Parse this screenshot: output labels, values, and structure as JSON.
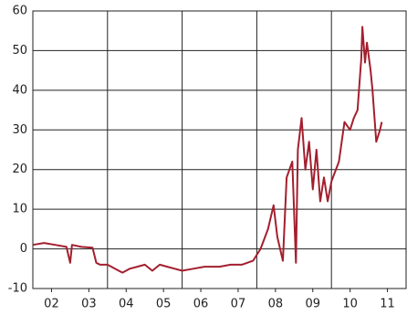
{
  "chart_data": {
    "type": "line",
    "x": [
      2002.0,
      2002.3,
      2002.6,
      2002.9,
      2003.0,
      2003.05,
      2003.3,
      2003.6,
      2003.7,
      2003.8,
      2004.0,
      2004.2,
      2004.4,
      2004.6,
      2004.8,
      2005.0,
      2005.2,
      2005.4,
      2005.6,
      2005.8,
      2006.0,
      2006.3,
      2006.6,
      2007.0,
      2007.3,
      2007.6,
      2007.9,
      2008.1,
      2008.3,
      2008.45,
      2008.55,
      2008.7,
      2008.8,
      2008.95,
      2009.05,
      2009.1,
      2009.2,
      2009.3,
      2009.4,
      2009.5,
      2009.6,
      2009.7,
      2009.8,
      2009.9,
      2010.0,
      2010.2,
      2010.35,
      2010.5,
      2010.6,
      2010.7,
      2010.8,
      2010.83,
      2010.9,
      2010.95,
      2011.05,
      2011.1,
      2011.2,
      2011.3,
      2011.35
    ],
    "series": [
      {
        "color": "#a31f2e",
        "values": [
          1,
          1.5,
          1,
          0.5,
          -3.5,
          1,
          0.5,
          0.3,
          -3.5,
          -4,
          -4,
          -5,
          -6,
          -5,
          -4.5,
          -4,
          -5.5,
          -4,
          -4.5,
          -5,
          -5.5,
          -5,
          -4.5,
          -4.5,
          -4,
          -4,
          -3,
          0,
          5,
          11,
          3,
          -3,
          18,
          22,
          -3.5,
          25,
          33,
          20,
          27,
          15,
          25,
          12,
          18,
          12,
          17,
          22,
          32,
          30,
          33,
          35,
          48,
          56,
          47,
          52,
          45,
          40,
          27,
          30,
          32
        ]
      }
    ],
    "xlim": [
      2002,
      2012
    ],
    "xticks": [
      {
        "value": 2002.5,
        "label": "02"
      },
      {
        "value": 2003.5,
        "label": "03"
      },
      {
        "value": 2004.5,
        "label": "04"
      },
      {
        "value": 2005.5,
        "label": "05"
      },
      {
        "value": 2006.5,
        "label": "06"
      },
      {
        "value": 2007.5,
        "label": "07"
      },
      {
        "value": 2008.5,
        "label": "08"
      },
      {
        "value": 2009.5,
        "label": "09"
      },
      {
        "value": 2010.5,
        "label": "10"
      },
      {
        "value": 2011.5,
        "label": "11"
      }
    ],
    "xgrid": [
      2004,
      2006,
      2008,
      2010
    ],
    "ylim": [
      -10,
      60
    ],
    "yticks": [
      -10,
      0,
      10,
      20,
      30,
      40,
      50,
      60
    ],
    "grid": true
  }
}
